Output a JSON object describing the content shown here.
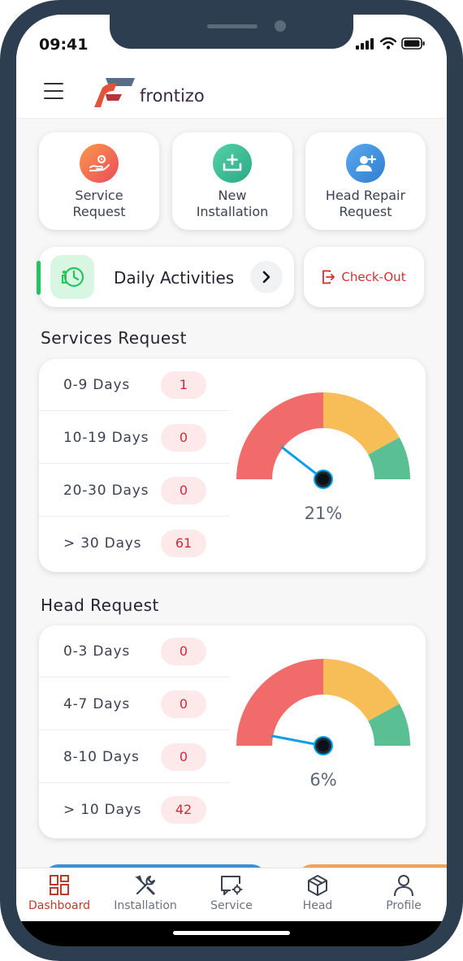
{
  "status_bar": {
    "time": "09:41"
  },
  "header": {
    "brand": "frontizo"
  },
  "quick_actions": [
    {
      "label": "Service\nRequest",
      "icon": "service-request-icon",
      "color": "#f7734a"
    },
    {
      "label": "New\nInstallation",
      "icon": "new-installation-icon",
      "color": "#3dbf95"
    },
    {
      "label": "Head Repair\nRequest",
      "icon": "head-repair-icon",
      "color": "#3b8edb"
    }
  ],
  "daily_activities": {
    "label": "Daily Activities"
  },
  "checkout": {
    "label": "Check-Out"
  },
  "services_request": {
    "title": "Services Request",
    "rows": [
      {
        "label": "0-9 Days",
        "count": "1"
      },
      {
        "label": "10-19 Days",
        "count": "0"
      },
      {
        "label": "20-30 Days",
        "count": "0"
      },
      {
        "label": "> 30 Days",
        "count": "61"
      }
    ],
    "gauge_percent": 21,
    "gauge_label": "21%"
  },
  "head_request": {
    "title": "Head Request",
    "rows": [
      {
        "label": "0-3 Days",
        "count": "0"
      },
      {
        "label": "4-7 Days",
        "count": "0"
      },
      {
        "label": "8-10 Days",
        "count": "0"
      },
      {
        "label": "> 10 Days",
        "count": "42"
      }
    ],
    "gauge_percent": 6,
    "gauge_label": "6%"
  },
  "gauge_colors": {
    "red": "#f26b6b",
    "yellow": "#f7bd57",
    "green": "#5bbf94",
    "needle": "#0aa0e6"
  },
  "tabs": [
    {
      "label": "Dashboard",
      "icon": "dashboard-icon",
      "active": true
    },
    {
      "label": "Installation",
      "icon": "installation-icon",
      "active": false
    },
    {
      "label": "Service",
      "icon": "service-icon",
      "active": false
    },
    {
      "label": "Head",
      "icon": "head-icon",
      "active": false
    },
    {
      "label": "Profile",
      "icon": "profile-icon",
      "active": false
    }
  ]
}
